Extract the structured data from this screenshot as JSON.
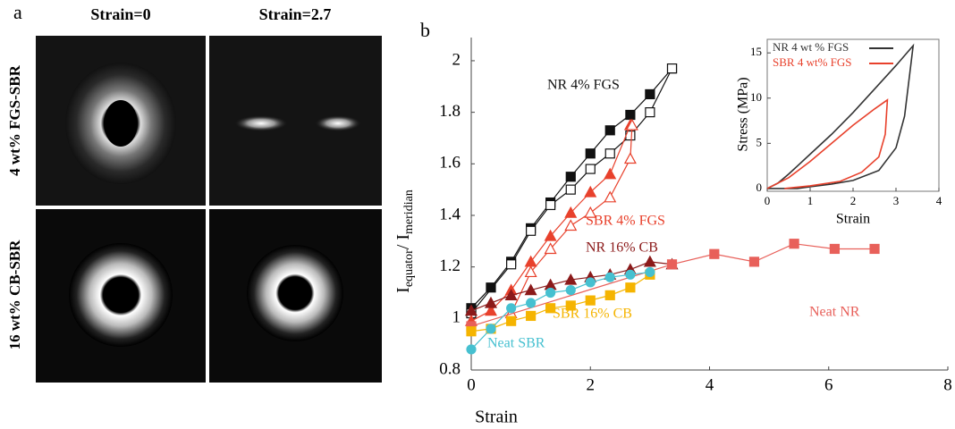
{
  "panel_a": {
    "label": "a",
    "columns": [
      "Strain=0",
      "Strain=2.7"
    ],
    "rows": [
      "4 wt% FGS-SBR",
      "16 wt% CB-SBR"
    ]
  },
  "chart_data": [
    {
      "type": "line",
      "label": "b",
      "xlabel": "Strain",
      "ylabel_parts": [
        "I",
        "equator",
        "/ I",
        "meridian"
      ],
      "xlim": [
        0,
        8
      ],
      "ylim": [
        0.8,
        2.09
      ],
      "xticks": [
        0,
        2,
        4,
        6,
        8
      ],
      "yticks": [
        0.8,
        1,
        1.2,
        1.4,
        1.6,
        1.8,
        2
      ],
      "series": [
        {
          "name": "NR 4% FGS",
          "color": "#111111",
          "marker": "square",
          "filled": true,
          "x": [
            0,
            0.33,
            0.67,
            1,
            1.33,
            1.67,
            2,
            2.33,
            2.67,
            3,
            3.37
          ],
          "values": [
            1.04,
            1.12,
            1.22,
            1.35,
            1.45,
            1.55,
            1.64,
            1.73,
            1.79,
            1.87,
            1.97
          ]
        },
        {
          "color": "#111111",
          "marker": "square",
          "filled": false,
          "x": [
            0,
            0.67,
            1,
            1.33,
            1.67,
            2,
            2.33,
            2.67,
            3,
            3.37
          ],
          "values": [
            1.02,
            1.21,
            1.34,
            1.44,
            1.5,
            1.58,
            1.64,
            1.71,
            1.8,
            1.97
          ]
        },
        {
          "name": "SBR 4% FGS",
          "color": "#e8412c",
          "marker": "triangle",
          "filled": true,
          "x": [
            0,
            0.33,
            0.67,
            1,
            1.33,
            1.67,
            2,
            2.33,
            2.67
          ],
          "values": [
            0.99,
            1.03,
            1.11,
            1.22,
            1.32,
            1.41,
            1.49,
            1.56,
            1.75
          ]
        },
        {
          "color": "#e8412c",
          "marker": "triangle",
          "filled": false,
          "x": [
            0.67,
            1,
            1.33,
            1.67,
            2,
            2.33,
            2.67,
            2.7
          ],
          "values": [
            1.02,
            1.18,
            1.27,
            1.36,
            1.41,
            1.47,
            1.62,
            1.75
          ]
        },
        {
          "name": "NR 16% CB",
          "color": "#8b1a1a",
          "marker": "triangle",
          "filled": true,
          "x": [
            0,
            0.33,
            0.67,
            1,
            1.33,
            1.67,
            2,
            2.33,
            2.67,
            3,
            3.37
          ],
          "values": [
            1.03,
            1.06,
            1.09,
            1.11,
            1.13,
            1.15,
            1.16,
            1.17,
            1.19,
            1.22,
            1.21
          ]
        },
        {
          "name": "Neat NR",
          "color": "#e8605a",
          "marker": "square",
          "filled": true,
          "x": [
            0,
            3.37,
            4.08,
            4.75,
            5.42,
            6.1,
            6.77
          ],
          "values": [
            0.97,
            1.21,
            1.25,
            1.22,
            1.29,
            1.27,
            1.27
          ]
        },
        {
          "name": "SBR 16% CB",
          "color": "#f5b400",
          "marker": "square",
          "filled": true,
          "x": [
            0,
            0.33,
            0.67,
            1,
            1.33,
            1.67,
            2,
            2.33,
            2.67,
            3
          ],
          "values": [
            0.95,
            0.96,
            0.99,
            1.01,
            1.04,
            1.05,
            1.07,
            1.09,
            1.12,
            1.17
          ]
        },
        {
          "name": "Neat SBR",
          "color": "#46c0d0",
          "marker": "circle",
          "filled": true,
          "x": [
            0,
            0.33,
            0.67,
            1,
            1.33,
            1.67,
            2,
            2.33,
            2.67,
            3
          ],
          "values": [
            0.88,
            0.96,
            1.04,
            1.06,
            1.1,
            1.11,
            1.14,
            1.16,
            1.17,
            1.18
          ]
        }
      ]
    },
    {
      "type": "line",
      "xlabel": "Strain",
      "ylabel": "Stress (MPa)",
      "xlim": [
        0,
        4
      ],
      "ylim": [
        -0.3,
        16.5
      ],
      "xticks": [
        0,
        1,
        2,
        3,
        4
      ],
      "yticks": [
        0,
        5,
        10,
        15
      ],
      "legend": "upper left",
      "series": [
        {
          "name": "NR 4 wt % FGS",
          "color": "#333333",
          "x": [
            0,
            0.25,
            0.5,
            1,
            1.5,
            2,
            2.5,
            3,
            3.4,
            3.2,
            3,
            2.6,
            2,
            1.5,
            1,
            0.7,
            0.3,
            0
          ],
          "values": [
            0,
            0.6,
            1.6,
            3.8,
            6,
            8.4,
            11,
            13.6,
            15.8,
            8,
            4.5,
            2,
            0.9,
            0.5,
            0.2,
            0,
            0,
            0
          ]
        },
        {
          "name": "SBR 4 wt% FGS",
          "color": "#e8412c",
          "x": [
            0,
            0.5,
            1,
            1.5,
            2,
            2.5,
            2.8,
            2.75,
            2.6,
            2.2,
            1.7,
            1,
            0.4
          ],
          "values": [
            0,
            1.2,
            3,
            5,
            7,
            8.8,
            9.8,
            6,
            3.5,
            1.8,
            0.8,
            0.3,
            0
          ]
        }
      ]
    }
  ]
}
